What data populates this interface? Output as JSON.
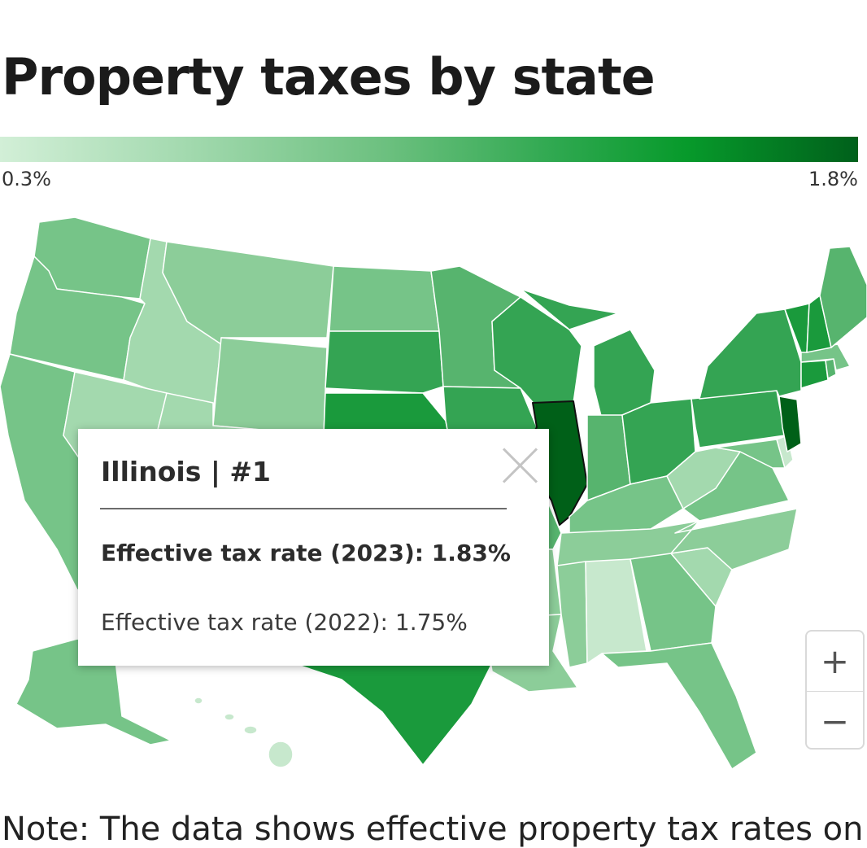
{
  "title": "Property taxes by state",
  "legend": {
    "min_label": "0.3%",
    "max_label": "1.8%",
    "colors": [
      "#d2efd7",
      "#a2d9ae",
      "#6cc07f",
      "#2ea84f",
      "#079a2b",
      "#00601b"
    ]
  },
  "popup": {
    "state": "Illinois | #1",
    "rate_2023_label": "Effective tax rate (2023): 1.83%",
    "rate_2022_label": "Effective tax rate (2022): 1.75%"
  },
  "zoom": {
    "zoom_in": "+",
    "zoom_out": "−"
  },
  "note": "Note: The data shows effective property tax rates on",
  "map_colors": {
    "lightest": "#c7e8cd",
    "light": "#a3d9ae",
    "light_mid": "#8ccd99",
    "mid": "#76c488",
    "mid_dark": "#57b46e",
    "dark": "#34a453",
    "darker": "#1a9a3c",
    "darkest": "#006018"
  }
}
